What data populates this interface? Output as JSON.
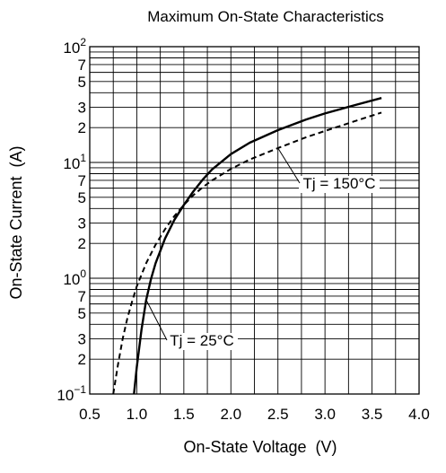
{
  "chart_data": {
    "type": "line",
    "title": "Maximum On-State Characteristics",
    "xlabel": "On-State Voltage  (V)",
    "ylabel": "On-State Current  (A)",
    "x_scale": "linear",
    "y_scale": "log",
    "xlim": [
      0.5,
      4.0
    ],
    "ylim": [
      0.1,
      100
    ],
    "grid": true,
    "x_ticks": [
      {
        "value": 0.5,
        "label": "0.5"
      },
      {
        "value": 1.0,
        "label": "1.0"
      },
      {
        "value": 1.5,
        "label": "1.5"
      },
      {
        "value": 2.0,
        "label": "2.0"
      },
      {
        "value": 2.5,
        "label": "2.5"
      },
      {
        "value": 3.0,
        "label": "3.0"
      },
      {
        "value": 3.5,
        "label": "3.5"
      },
      {
        "value": 4.0,
        "label": "4.0"
      }
    ],
    "y_major_ticks": [
      {
        "value": 0.1,
        "base": "10",
        "exp": "−1"
      },
      {
        "value": 1,
        "base": "10",
        "exp": "0"
      },
      {
        "value": 10,
        "base": "10",
        "exp": "1"
      },
      {
        "value": 100,
        "base": "10",
        "exp": "2"
      }
    ],
    "y_minor_ticks": [
      {
        "value": 0.2,
        "label": "2"
      },
      {
        "value": 0.3,
        "label": "3"
      },
      {
        "value": 0.5,
        "label": "5"
      },
      {
        "value": 0.7,
        "label": "7"
      },
      {
        "value": 2,
        "label": "2"
      },
      {
        "value": 3,
        "label": "3"
      },
      {
        "value": 5,
        "label": "5"
      },
      {
        "value": 7,
        "label": "7"
      },
      {
        "value": 20,
        "label": "2"
      },
      {
        "value": 30,
        "label": "3"
      },
      {
        "value": 50,
        "label": "5"
      },
      {
        "value": 70,
        "label": "7"
      }
    ],
    "series": [
      {
        "name": "Tj = 25°C",
        "style": "solid",
        "color": "#000000",
        "x": [
          0.97,
          1.0,
          1.05,
          1.1,
          1.15,
          1.2,
          1.3,
          1.4,
          1.5,
          1.6,
          1.7,
          1.8,
          2.0,
          2.2,
          2.5,
          2.8,
          3.0,
          3.3,
          3.6
        ],
        "y": [
          0.1,
          0.17,
          0.36,
          0.65,
          0.98,
          1.35,
          2.2,
          3.2,
          4.3,
          5.6,
          7.1,
          8.7,
          11.8,
          14.8,
          19,
          23.5,
          26.5,
          31,
          36
        ]
      },
      {
        "name": "Tj = 150°C",
        "style": "dashed",
        "color": "#000000",
        "x": [
          0.75,
          0.8,
          0.85,
          0.9,
          0.95,
          1.0,
          1.1,
          1.2,
          1.3,
          1.4,
          1.5,
          1.6,
          1.7,
          1.8,
          2.0,
          2.2,
          2.5,
          2.8,
          3.0,
          3.3,
          3.6
        ],
        "y": [
          0.1,
          0.18,
          0.3,
          0.45,
          0.63,
          0.85,
          1.35,
          1.95,
          2.65,
          3.45,
          4.3,
          5.2,
          6.1,
          7,
          8.8,
          10.6,
          13.3,
          16.5,
          18.7,
          22.5,
          27
        ]
      }
    ],
    "annotations": [
      {
        "text": "Tj = 150°C",
        "target_x": 2.5,
        "target_y": 13.3
      },
      {
        "text": "Tj = 25°C",
        "target_x": 1.1,
        "target_y": 0.65
      }
    ]
  }
}
